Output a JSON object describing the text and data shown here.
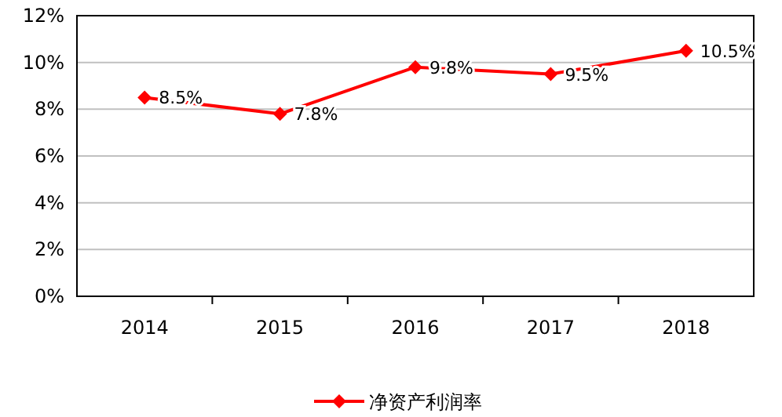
{
  "chart_data": {
    "type": "line",
    "categories": [
      "2014",
      "2015",
      "2016",
      "2017",
      "2018"
    ],
    "series": [
      {
        "name": "净资产利润率",
        "color": "#ff0000",
        "values": [
          8.5,
          7.8,
          9.8,
          9.5,
          10.5
        ],
        "value_labels": [
          "8.5%",
          "7.8%",
          "9.8%",
          "9.5%",
          "10.5%"
        ]
      }
    ],
    "ylim": [
      0,
      12
    ],
    "yticks": [
      {
        "value": 0,
        "label": "0%"
      },
      {
        "value": 2,
        "label": "2%"
      },
      {
        "value": 4,
        "label": "4%"
      },
      {
        "value": 6,
        "label": "6%"
      },
      {
        "value": 8,
        "label": "8%"
      },
      {
        "value": 10,
        "label": "10%"
      },
      {
        "value": 12,
        "label": "12%"
      }
    ],
    "grid": "y",
    "legend": "bottom",
    "marker": "diamond",
    "line_style": "solid"
  }
}
